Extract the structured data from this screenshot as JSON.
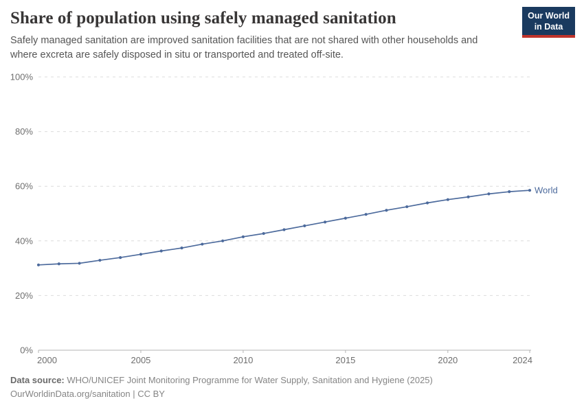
{
  "header": {
    "title": "Share of population using safely managed sanitation",
    "subtitle": "Safely managed sanitation are improved sanitation facilities that are not shared with other households and where excreta are safely disposed in situ or transported and treated off-site.",
    "logo": {
      "line1": "Our World",
      "line2": "in Data",
      "bg_color": "#1a3a5f",
      "accent_color": "#c0342b"
    }
  },
  "chart_data": {
    "type": "line",
    "title": "Share of population using safely managed sanitation",
    "x": [
      2000,
      2001,
      2002,
      2003,
      2004,
      2005,
      2006,
      2007,
      2008,
      2009,
      2010,
      2011,
      2012,
      2013,
      2014,
      2015,
      2016,
      2017,
      2018,
      2019,
      2020,
      2021,
      2022,
      2023,
      2024
    ],
    "series": [
      {
        "name": "World",
        "color": "#4C6A9C",
        "values": [
          31.2,
          31.6,
          31.8,
          32.9,
          33.9,
          35.1,
          36.3,
          37.4,
          38.8,
          40.0,
          41.5,
          42.7,
          44.1,
          45.5,
          46.9,
          48.3,
          49.7,
          51.2,
          52.5,
          53.9,
          55.1,
          56.1,
          57.2,
          58.0,
          58.5
        ]
      }
    ],
    "x_ticks": [
      2000,
      2005,
      2010,
      2015,
      2020,
      2024
    ],
    "y_ticks": [
      0,
      20,
      40,
      60,
      80,
      100
    ],
    "y_suffix": "%",
    "xlim": [
      2000,
      2024
    ],
    "ylim": [
      0,
      100
    ],
    "xlabel": "",
    "ylabel": "",
    "grid": "horizontal-dashed",
    "legend": "end-of-line-label",
    "colors": {
      "gridline": "#dcdcdc",
      "axis": "#b3b3b3",
      "tick_label": "#6e6e6e"
    }
  },
  "footer": {
    "datasource_label": "Data source:",
    "datasource_text": "WHO/UNICEF Joint Monitoring Programme for Water Supply, Sanitation and Hygiene (2025)",
    "license_text": "OurWorldinData.org/sanitation | CC BY"
  }
}
